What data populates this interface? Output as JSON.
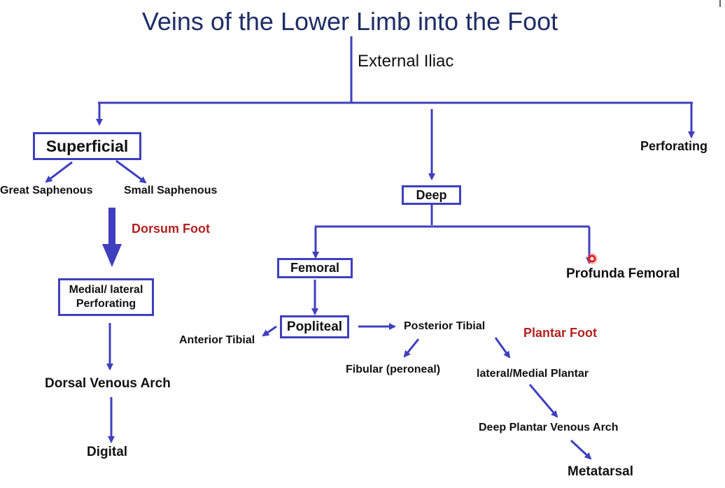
{
  "title": "Veins of the Lower Limb into the Foot",
  "colors": {
    "title": "#1f2d66",
    "arrow": "#3f3fbf",
    "accent": "#b22222"
  },
  "nodes": {
    "external_iliac": "External Iliac",
    "superficial": "Superficial",
    "great_saphenous": "Great Saphenous",
    "small_saphenous": "Small Saphenous",
    "dorsum_foot": "Dorsum Foot",
    "medial_lateral_perforating": "Medial/ lateral Perforating",
    "dorsal_venous_arch": "Dorsal Venous Arch",
    "digital": "Digital",
    "deep": "Deep",
    "perforating": "Perforating",
    "femoral": "Femoral",
    "profunda_femoral": "Profunda Femoral",
    "popliteal": "Popliteal",
    "anterior_tibial": "Anterior Tibial",
    "posterior_tibial": "Posterior Tibial",
    "plantar_foot": "Plantar Foot",
    "fibular": "Fibular (peroneal)",
    "lateral_medial_plantar": "lateral/Medial Plantar",
    "deep_plantar_venous_arch": "Deep Plantar Venous Arch",
    "metatarsal": "Metatarsal"
  }
}
